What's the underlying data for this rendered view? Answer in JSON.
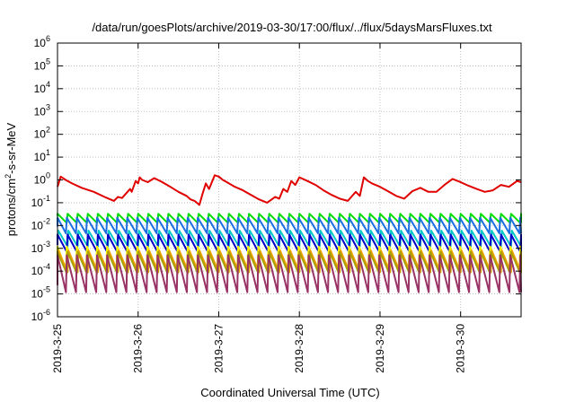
{
  "chart_data": {
    "type": "line",
    "title": "/data/run/goesPlots/archive/2019-03-30/17:00/flux/../flux/5daysMarsFluxes.txt",
    "xlabel": "Coordinated Universal Time (UTC)",
    "ylabel": "protons/cm²-s-sr-MeV",
    "ylabel_parts": {
      "pre": "protons/cm",
      "sup": "2",
      "post": "-s-sr-MeV"
    },
    "y_scale": "log",
    "ylim": [
      1e-06,
      1000000.0
    ],
    "xlim": [
      "2019-03-25 00:00",
      "2019-03-30 18:00"
    ],
    "y_ticks": [
      {
        "base": "10",
        "exp": "-6"
      },
      {
        "base": "10",
        "exp": "-5"
      },
      {
        "base": "10",
        "exp": "-4"
      },
      {
        "base": "10",
        "exp": "-3"
      },
      {
        "base": "10",
        "exp": "-2"
      },
      {
        "base": "10",
        "exp": "-1"
      },
      {
        "base": "10",
        "exp": "0"
      },
      {
        "base": "10",
        "exp": "1"
      },
      {
        "base": "10",
        "exp": "2"
      },
      {
        "base": "10",
        "exp": "3"
      },
      {
        "base": "10",
        "exp": "4"
      },
      {
        "base": "10",
        "exp": "5"
      },
      {
        "base": "10",
        "exp": "6"
      }
    ],
    "x_ticks": [
      "2019-3-25",
      "2019-3-26",
      "2019-3-27",
      "2019-3-28",
      "2019-3-29",
      "2019-3-30"
    ],
    "grid": true,
    "legend": "none",
    "series": [
      {
        "color": "#e00000",
        "x": [
          0,
          0.04,
          0.1,
          0.18,
          0.3,
          0.45,
          0.6,
          0.7,
          0.75,
          0.8,
          0.9,
          0.92,
          0.97,
          1.0,
          1.02,
          1.05,
          1.12,
          1.2,
          1.3,
          1.4,
          1.5,
          1.6,
          1.65,
          1.7,
          1.76,
          1.8,
          1.84,
          1.88,
          1.95,
          2.0,
          2.05,
          2.1,
          2.2,
          2.3,
          2.4,
          2.5,
          2.6,
          2.7,
          2.75,
          2.8,
          2.85,
          2.9,
          2.95,
          3.0,
          3.1,
          3.2,
          3.3,
          3.4,
          3.5,
          3.6,
          3.7,
          3.75,
          3.8,
          3.85,
          3.9,
          4.0,
          4.1,
          4.2,
          4.3,
          4.4,
          4.5,
          4.6,
          4.7,
          4.8,
          4.9,
          5.0,
          5.1,
          5.2,
          5.3,
          5.4,
          5.5,
          5.6,
          5.7,
          5.75
        ],
        "y": [
          0.5,
          1.4,
          1.0,
          0.7,
          0.45,
          0.3,
          0.17,
          0.12,
          0.18,
          0.16,
          0.4,
          0.3,
          0.9,
          0.7,
          1.3,
          1.0,
          0.8,
          1.2,
          0.8,
          0.5,
          0.3,
          0.2,
          0.14,
          0.12,
          0.08,
          0.25,
          0.7,
          0.4,
          1.6,
          1.4,
          1.0,
          0.8,
          0.5,
          0.35,
          0.22,
          0.14,
          0.1,
          0.18,
          0.15,
          0.4,
          0.3,
          0.9,
          0.6,
          1.3,
          0.9,
          0.6,
          0.35,
          0.22,
          0.15,
          0.12,
          0.3,
          0.2,
          1.3,
          0.9,
          0.7,
          0.5,
          0.32,
          0.2,
          0.15,
          0.32,
          0.45,
          0.3,
          0.3,
          0.6,
          1.1,
          0.8,
          0.55,
          0.4,
          0.3,
          0.35,
          0.6,
          0.5,
          0.9,
          0.8
        ]
      },
      {
        "color": "#00dd00",
        "hi": 0.033,
        "lo": 0.013
      },
      {
        "color": "#1c6fe0",
        "hi": 0.022,
        "lo": 0.0045
      },
      {
        "color": "#00c8c8",
        "hi": 0.006,
        "lo": 0.0012
      },
      {
        "color": "#0000c8",
        "hi": 0.004,
        "lo": 0.0007
      },
      {
        "color": "#f2f200",
        "hi": 0.0012,
        "lo": 0.00012
      },
      {
        "color": "#f0a000",
        "hi": 0.0008,
        "lo": 9e-05
      },
      {
        "color": "#aaa000",
        "hi": 0.0007,
        "lo": 8e-05
      },
      {
        "color": "#993366",
        "hi": 0.0005,
        "lo": 1.2e-05
      }
    ],
    "sawtooth_period_days": 0.125
  }
}
